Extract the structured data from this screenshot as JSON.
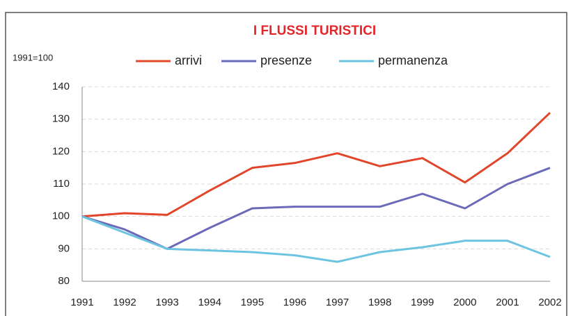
{
  "chart_data": {
    "type": "line",
    "title": "I FLUSSI TURISTICI",
    "y_label": "1991=100",
    "categories": [
      "1991",
      "1992",
      "1993",
      "1994",
      "1995",
      "1996",
      "1997",
      "1998",
      "1999",
      "2000",
      "2001",
      "2002"
    ],
    "series": [
      {
        "name": "arrivi",
        "color": "#e2462a",
        "values": [
          100,
          101,
          100.5,
          108,
          115,
          116.5,
          119.5,
          115.5,
          118,
          110.5,
          119.5,
          132
        ]
      },
      {
        "name": "presenze",
        "color": "#6a6ab8",
        "values": [
          100,
          96,
          90,
          96.5,
          102.5,
          103,
          103,
          103,
          107,
          102.5,
          110,
          115
        ]
      },
      {
        "name": "permanenza",
        "color": "#6cc4e0",
        "values": [
          100,
          95,
          90,
          89.5,
          89,
          88,
          86,
          89,
          90.5,
          92.5,
          92.5,
          87.5
        ]
      }
    ],
    "ylim": [
      80,
      140
    ],
    "yticks": [
      80,
      90,
      100,
      110,
      120,
      130,
      140
    ],
    "grid": true,
    "legend": "top"
  }
}
